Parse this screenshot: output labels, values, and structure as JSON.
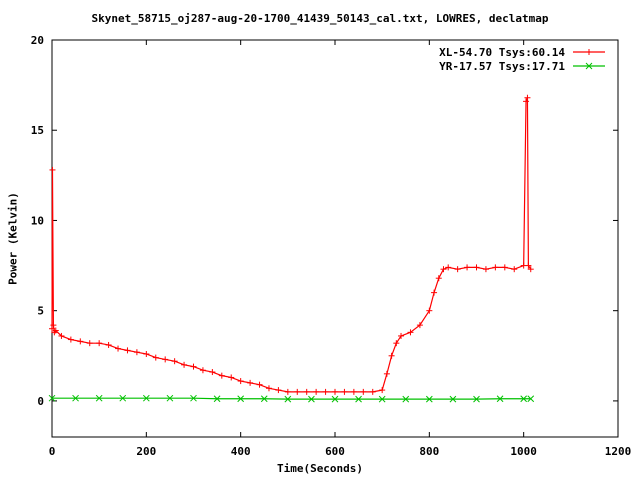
{
  "chart_data": {
    "type": "line",
    "title": "Skynet_58715_oj287-aug-20-1700_41439_50143_cal.txt, LOWRES, declatmap",
    "xlabel": "Time(Seconds)",
    "ylabel": "Power (Kelvin)",
    "xlim": [
      0,
      1200
    ],
    "ylim": [
      -2,
      20
    ],
    "x_ticks": [
      "0",
      "200",
      "400",
      "600",
      "800",
      "1000",
      "1200"
    ],
    "y_ticks": [
      "0",
      "5",
      "10",
      "15",
      "20"
    ],
    "grid": false,
    "legend_position": "top-right",
    "series": [
      {
        "name": "XL-54.70 Tsys:60.14",
        "color": "#ff0000",
        "marker": "plus",
        "x": [
          0,
          1,
          3,
          5,
          8,
          20,
          40,
          60,
          80,
          100,
          120,
          140,
          160,
          180,
          200,
          220,
          240,
          260,
          280,
          300,
          320,
          340,
          360,
          380,
          400,
          420,
          440,
          460,
          480,
          500,
          520,
          540,
          560,
          580,
          600,
          620,
          640,
          660,
          680,
          700,
          710,
          720,
          730,
          740,
          760,
          780,
          800,
          810,
          820,
          830,
          840,
          860,
          880,
          900,
          920,
          940,
          960,
          980,
          1000,
          1005,
          1008,
          1010,
          1015
        ],
        "y": [
          4.0,
          12.8,
          4.2,
          3.8,
          3.9,
          3.6,
          3.4,
          3.3,
          3.2,
          3.2,
          3.1,
          2.9,
          2.8,
          2.7,
          2.6,
          2.4,
          2.3,
          2.2,
          2.0,
          1.9,
          1.7,
          1.6,
          1.4,
          1.3,
          1.1,
          1.0,
          0.9,
          0.7,
          0.6,
          0.5,
          0.5,
          0.5,
          0.5,
          0.5,
          0.5,
          0.5,
          0.5,
          0.5,
          0.5,
          0.6,
          1.5,
          2.5,
          3.2,
          3.6,
          3.8,
          4.2,
          5.0,
          6.0,
          6.8,
          7.3,
          7.4,
          7.3,
          7.4,
          7.4,
          7.3,
          7.4,
          7.4,
          7.3,
          7.5,
          16.6,
          16.8,
          7.5,
          7.3
        ]
      },
      {
        "name": "YR-17.57 Tsys:17.71",
        "color": "#00c000",
        "marker": "cross",
        "x": [
          0,
          50,
          100,
          150,
          200,
          250,
          300,
          350,
          400,
          450,
          500,
          550,
          600,
          650,
          700,
          750,
          800,
          850,
          900,
          950,
          1000,
          1015
        ],
        "y": [
          0.15,
          0.15,
          0.15,
          0.15,
          0.15,
          0.15,
          0.15,
          0.12,
          0.12,
          0.12,
          0.1,
          0.1,
          0.1,
          0.1,
          0.1,
          0.1,
          0.1,
          0.1,
          0.1,
          0.12,
          0.12,
          0.12
        ]
      }
    ]
  }
}
